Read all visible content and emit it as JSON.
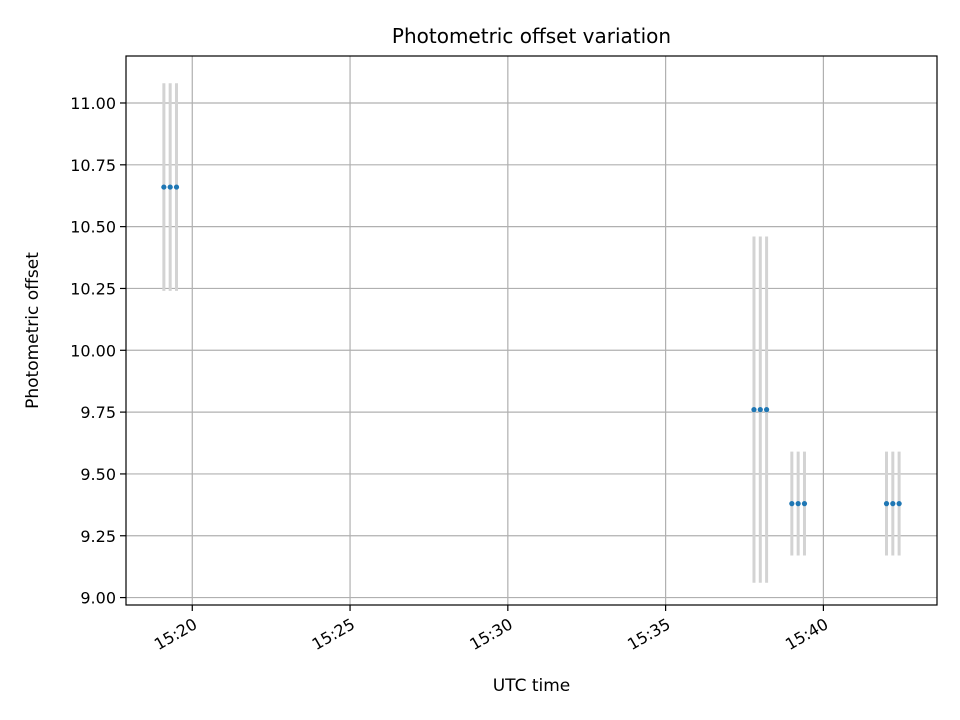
{
  "chart_data": {
    "type": "scatter",
    "title": "Photometric offset variation",
    "xlabel": "UTC time",
    "ylabel": "Photometric offset",
    "x_ticks": [
      "15:20",
      "15:25",
      "15:30",
      "15:35",
      "15:40"
    ],
    "x_ticks_min": [
      20,
      25,
      30,
      35,
      40
    ],
    "xlim_min": [
      17.9,
      43.6
    ],
    "y_ticks": [
      "9.00",
      "9.25",
      "9.50",
      "9.75",
      "10.00",
      "10.25",
      "10.50",
      "10.75",
      "11.00"
    ],
    "y_tick_values": [
      9.0,
      9.25,
      9.5,
      9.75,
      10.0,
      10.25,
      10.5,
      10.75,
      11.0
    ],
    "ylim": [
      8.97,
      11.19
    ],
    "grid": true,
    "colors": {
      "points": "#1f77b4",
      "errorbars": "#d3d3d3",
      "grid": "#b0b0b0"
    },
    "series": [
      {
        "points": [
          {
            "t": "15:19.1",
            "x_min": 19.1,
            "y": 10.66,
            "err": 0.42
          },
          {
            "t": "15:19.3",
            "x_min": 19.3,
            "y": 10.66,
            "err": 0.42
          },
          {
            "t": "15:19.5",
            "x_min": 19.5,
            "y": 10.66,
            "err": 0.42
          },
          {
            "t": "15:37.8",
            "x_min": 37.8,
            "y": 9.76,
            "err": 0.7
          },
          {
            "t": "15:38.0",
            "x_min": 38.0,
            "y": 9.76,
            "err": 0.7
          },
          {
            "t": "15:38.2",
            "x_min": 38.2,
            "y": 9.76,
            "err": 0.7
          },
          {
            "t": "15:39.0",
            "x_min": 39.0,
            "y": 9.38,
            "err": 0.21
          },
          {
            "t": "15:39.2",
            "x_min": 39.2,
            "y": 9.38,
            "err": 0.21
          },
          {
            "t": "15:39.4",
            "x_min": 39.4,
            "y": 9.38,
            "err": 0.21
          },
          {
            "t": "15:42.0",
            "x_min": 42.0,
            "y": 9.38,
            "err": 0.21
          },
          {
            "t": "15:42.2",
            "x_min": 42.2,
            "y": 9.38,
            "err": 0.21
          },
          {
            "t": "15:42.4",
            "x_min": 42.4,
            "y": 9.38,
            "err": 0.21
          }
        ]
      }
    ]
  }
}
